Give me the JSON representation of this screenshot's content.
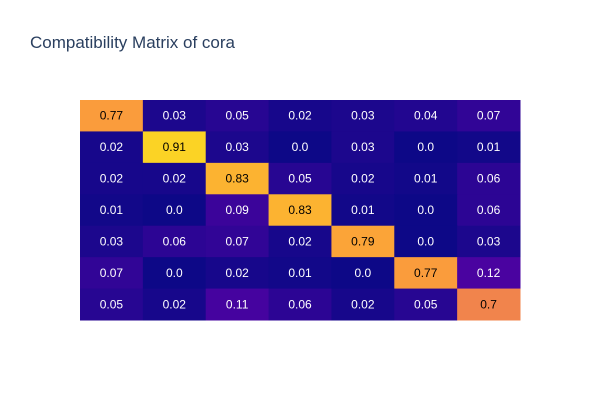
{
  "chart_data": {
    "type": "heatmap",
    "title": "Compatibility Matrix of cora",
    "xlabel": "",
    "ylabel": "",
    "colorscale": [
      "#0d0887",
      "#46039f",
      "#7201a8",
      "#9c179e",
      "#bd3786",
      "#d8576b",
      "#ed7953",
      "#fb9f3a",
      "#fdca26",
      "#f0f921"
    ],
    "zmin": 0,
    "zmax": 1,
    "values": [
      [
        "0.77",
        "0.03",
        "0.05",
        "0.02",
        "0.03",
        "0.04",
        "0.07"
      ],
      [
        "0.02",
        "0.91",
        "0.03",
        "0.0",
        "0.03",
        "0.0",
        "0.01"
      ],
      [
        "0.02",
        "0.02",
        "0.83",
        "0.05",
        "0.02",
        "0.01",
        "0.06"
      ],
      [
        "0.01",
        "0.0",
        "0.09",
        "0.83",
        "0.01",
        "0.0",
        "0.06"
      ],
      [
        "0.03",
        "0.06",
        "0.07",
        "0.02",
        "0.79",
        "0.0",
        "0.03"
      ],
      [
        "0.07",
        "0.0",
        "0.02",
        "0.01",
        "0.0",
        "0.77",
        "0.12"
      ],
      [
        "0.05",
        "0.02",
        "0.11",
        "0.06",
        "0.02",
        "0.05",
        "0.7"
      ]
    ]
  }
}
